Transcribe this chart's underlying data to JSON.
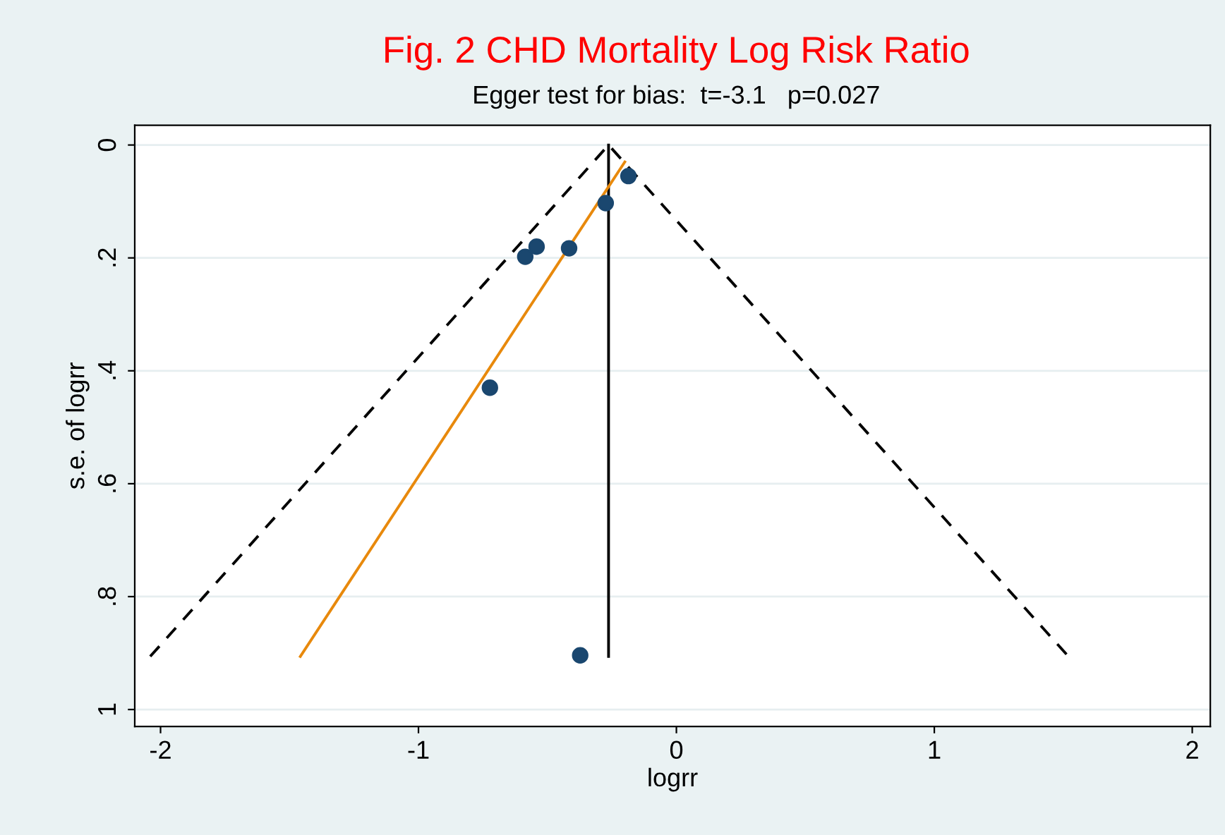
{
  "chart_data": {
    "type": "scatter",
    "title": "Fig. 2 CHD Mortality Log Risk Ratio",
    "subtitle": "Egger test for bias:  t=-3.1   p=0.027",
    "xlabel": "logrr",
    "ylabel": "s.e. of logrr",
    "xlim": [
      -2.1,
      2.07
    ],
    "ylim": [
      1.03,
      -0.035
    ],
    "xticks": [
      -2,
      -1,
      0,
      1,
      2
    ],
    "yticks": [
      0,
      {
        "value": 0.2,
        "label": ".2"
      },
      {
        "value": 0.4,
        "label": ".4"
      },
      {
        "value": 0.6,
        "label": ".6"
      },
      {
        "value": 0.8,
        "label": ".8"
      },
      1
    ],
    "grid": "y",
    "legend": false,
    "series": [
      {
        "type": "line",
        "color": "#000000",
        "line_style": "dashed",
        "x": [
          -2.04,
          -0.263,
          1.52
        ],
        "values": [
          0.906,
          0,
          0.906
        ]
      },
      {
        "type": "line",
        "color": "#000000",
        "line_style": "solid",
        "x": [
          -0.263,
          -0.263
        ],
        "values": [
          0,
          0.906
        ]
      },
      {
        "type": "line",
        "color": "#e8890c",
        "line_style": "solid",
        "x": [
          -1.458,
          -0.2
        ],
        "values": [
          0.906,
          0.03
        ]
      },
      {
        "color": "#1a476f",
        "marker": "circle",
        "x": [
          -0.186,
          -0.274,
          -0.542,
          -0.586,
          -0.416,
          -0.723,
          -0.373
        ],
        "values": [
          0.055,
          0.103,
          0.18,
          0.198,
          0.183,
          0.43,
          0.904
        ]
      }
    ]
  }
}
